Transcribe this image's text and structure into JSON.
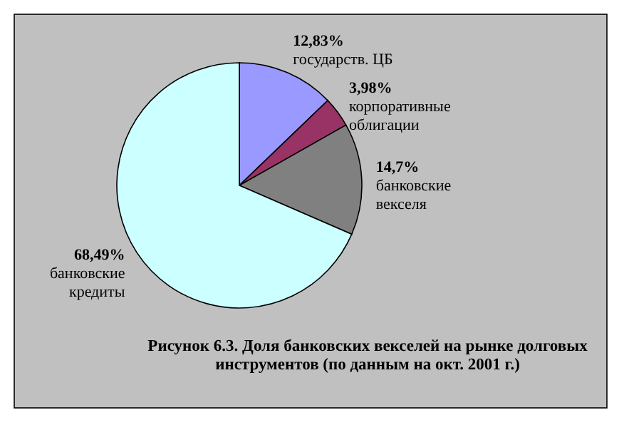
{
  "chart_data": {
    "type": "pie",
    "title": "Рисунок 6.3. Доля банковских векселей на рынке долговых инструментов (по данным на окт. 2001 г.)",
    "categories": [
      "государств. ЦБ",
      "корпоративные облигации",
      "банковские векселя",
      "банковские кредиты"
    ],
    "values": [
      12.83,
      3.98,
      14.7,
      68.49
    ],
    "value_labels": [
      "12,83%",
      "3,98%",
      "14,7%",
      "68,49%"
    ],
    "colors": [
      "#9999ff",
      "#993366",
      "#808080",
      "#ccffff"
    ]
  }
}
